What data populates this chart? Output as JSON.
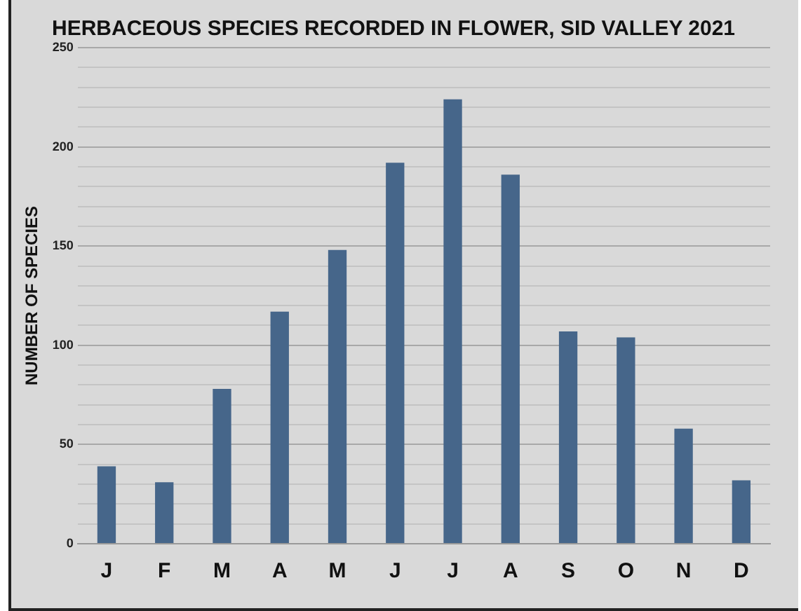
{
  "chart_data": {
    "type": "bar",
    "title": "HERBACEOUS SPECIES RECORDED IN FLOWER, SID VALLEY 2021",
    "ylabel": "NUMBER OF SPECIES",
    "categories": [
      "J",
      "F",
      "M",
      "A",
      "M",
      "J",
      "J",
      "A",
      "S",
      "O",
      "N",
      "D"
    ],
    "values": [
      39,
      31,
      78,
      117,
      148,
      192,
      224,
      186,
      107,
      104,
      58,
      32
    ],
    "color": "#46668a",
    "ylim": [
      0,
      250
    ],
    "yticks": [
      0,
      {
        "value": 10,
        "label": null
      },
      {
        "value": 20,
        "label": null
      },
      {
        "value": 30,
        "label": null
      },
      {
        "value": 40,
        "label": null
      },
      50,
      {
        "value": 60,
        "label": null
      },
      {
        "value": 70,
        "label": null
      },
      {
        "value": 80,
        "label": null
      },
      {
        "value": 90,
        "label": null
      },
      100,
      {
        "value": 110,
        "label": null
      },
      {
        "value": 120,
        "label": null
      },
      {
        "value": 130,
        "label": null
      },
      {
        "value": 140,
        "label": null
      },
      150,
      {
        "value": 160,
        "label": null
      },
      {
        "value": 170,
        "label": null
      },
      {
        "value": 180,
        "label": null
      },
      {
        "value": 190,
        "label": null
      },
      200,
      {
        "value": 210,
        "label": null
      },
      {
        "value": 220,
        "label": null
      },
      {
        "value": 230,
        "label": null
      },
      {
        "value": 240,
        "label": null
      },
      250
    ],
    "grid": true,
    "legend": false
  }
}
